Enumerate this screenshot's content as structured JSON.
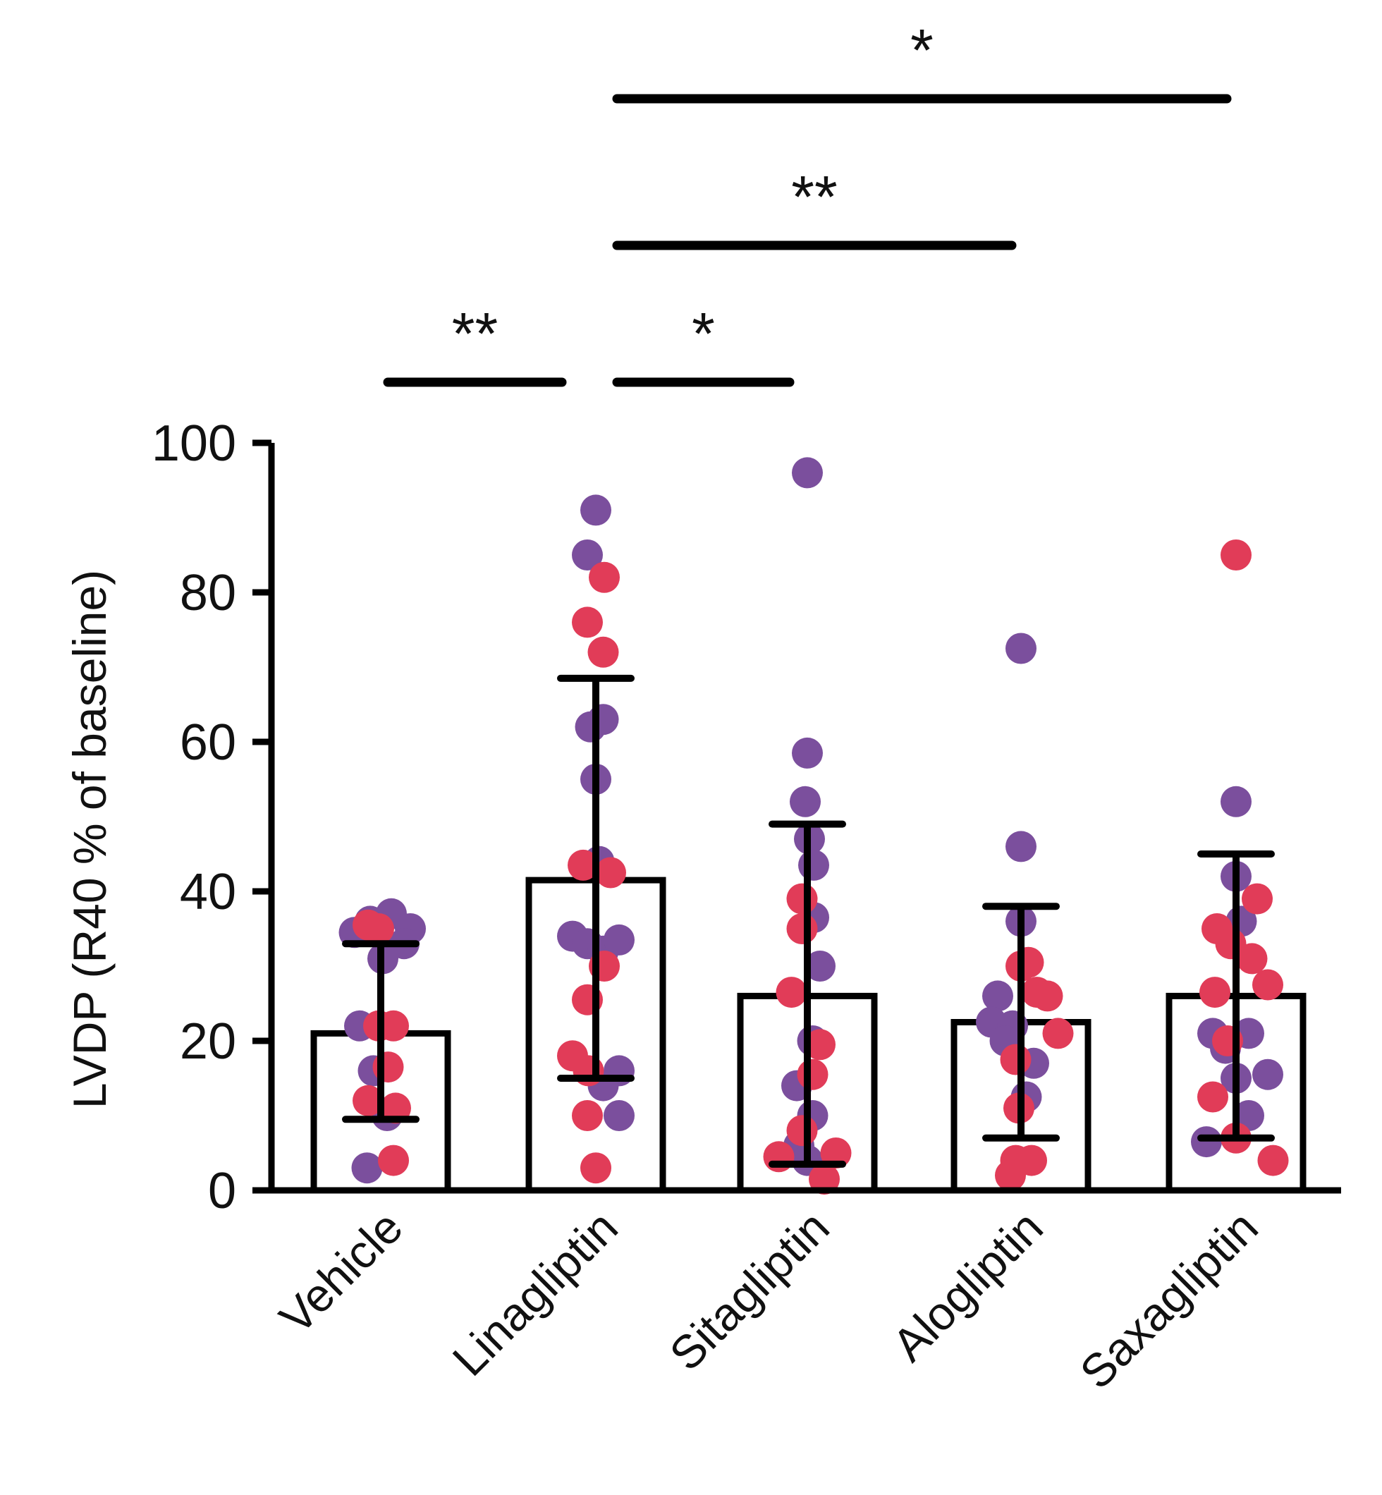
{
  "chart_data": {
    "type": "bar",
    "title": "",
    "xlabel": "",
    "ylabel": "LVDP (R40 % of baseline)",
    "ylim": [
      0,
      100
    ],
    "yticks": [
      {
        "value": 0,
        "label": "0"
      },
      {
        "value": 20,
        "label": "20"
      },
      {
        "value": 40,
        "label": "40"
      },
      {
        "value": 60,
        "label": "60"
      },
      {
        "value": 80,
        "label": "80"
      },
      {
        "value": 100,
        "label": "100"
      }
    ],
    "colors": {
      "purple": "#7b4f9d",
      "red": "#e13c58",
      "bar_fill": "#ffffff",
      "ink": "#000000"
    },
    "groups": [
      {
        "label": "Vehicle",
        "mean": 21,
        "err_low": 9.5,
        "err_high": 33,
        "points": [
          {
            "v": 34.5,
            "c": "purple",
            "dx": -0.25
          },
          {
            "v": 36,
            "c": "purple",
            "dx": -0.1
          },
          {
            "v": 37,
            "c": "purple",
            "dx": 0.1
          },
          {
            "v": 35,
            "c": "purple",
            "dx": 0.28
          },
          {
            "v": 33,
            "c": "purple",
            "dx": 0.22
          },
          {
            "v": 31,
            "c": "purple",
            "dx": 0.02
          },
          {
            "v": 22,
            "c": "purple",
            "dx": -0.2
          },
          {
            "v": 16,
            "c": "purple",
            "dx": -0.07
          },
          {
            "v": 10,
            "c": "purple",
            "dx": 0.06
          },
          {
            "v": 3,
            "c": "purple",
            "dx": -0.13
          },
          {
            "v": 35.5,
            "c": "red",
            "dx": -0.12
          },
          {
            "v": 35,
            "c": "red",
            "dx": -0.02
          },
          {
            "v": 22,
            "c": "red",
            "dx": -0.02
          },
          {
            "v": 22,
            "c": "red",
            "dx": 0.12
          },
          {
            "v": 16.5,
            "c": "red",
            "dx": 0.07
          },
          {
            "v": 12,
            "c": "red",
            "dx": -0.12
          },
          {
            "v": 11,
            "c": "red",
            "dx": 0.14
          },
          {
            "v": 4,
            "c": "red",
            "dx": 0.12
          }
        ]
      },
      {
        "label": "Linagliptin",
        "mean": 41.5,
        "err_low": 15,
        "err_high": 68.5,
        "points": [
          {
            "v": 91,
            "c": "purple",
            "dx": 0.0
          },
          {
            "v": 85,
            "c": "purple",
            "dx": -0.08
          },
          {
            "v": 63,
            "c": "purple",
            "dx": 0.07
          },
          {
            "v": 62,
            "c": "purple",
            "dx": -0.05
          },
          {
            "v": 55,
            "c": "purple",
            "dx": 0.0
          },
          {
            "v": 44,
            "c": "purple",
            "dx": 0.03
          },
          {
            "v": 34,
            "c": "purple",
            "dx": -0.22
          },
          {
            "v": 33,
            "c": "purple",
            "dx": -0.08
          },
          {
            "v": 32,
            "c": "purple",
            "dx": 0.07
          },
          {
            "v": 33.5,
            "c": "purple",
            "dx": 0.22
          },
          {
            "v": 16,
            "c": "purple",
            "dx": 0.22
          },
          {
            "v": 14,
            "c": "purple",
            "dx": 0.07
          },
          {
            "v": 10,
            "c": "purple",
            "dx": 0.22
          },
          {
            "v": 82,
            "c": "red",
            "dx": 0.08
          },
          {
            "v": 76,
            "c": "red",
            "dx": -0.08
          },
          {
            "v": 72,
            "c": "red",
            "dx": 0.07
          },
          {
            "v": 43.5,
            "c": "red",
            "dx": -0.12
          },
          {
            "v": 42.5,
            "c": "red",
            "dx": 0.14
          },
          {
            "v": 30,
            "c": "red",
            "dx": 0.08
          },
          {
            "v": 25.5,
            "c": "red",
            "dx": -0.08
          },
          {
            "v": 18,
            "c": "red",
            "dx": -0.22
          },
          {
            "v": 16,
            "c": "red",
            "dx": -0.07
          },
          {
            "v": 10,
            "c": "red",
            "dx": -0.08
          },
          {
            "v": 3,
            "c": "red",
            "dx": 0.0
          }
        ]
      },
      {
        "label": "Sitagliptin",
        "mean": 26,
        "err_low": 3.5,
        "err_high": 49,
        "points": [
          {
            "v": 96,
            "c": "purple",
            "dx": 0.0
          },
          {
            "v": 58.5,
            "c": "purple",
            "dx": 0.0
          },
          {
            "v": 52,
            "c": "purple",
            "dx": -0.02
          },
          {
            "v": 47,
            "c": "purple",
            "dx": 0.02
          },
          {
            "v": 43.5,
            "c": "purple",
            "dx": 0.06
          },
          {
            "v": 36.5,
            "c": "purple",
            "dx": 0.06
          },
          {
            "v": 30,
            "c": "purple",
            "dx": 0.12
          },
          {
            "v": 20,
            "c": "purple",
            "dx": 0.05
          },
          {
            "v": 14,
            "c": "purple",
            "dx": -0.1
          },
          {
            "v": 10,
            "c": "purple",
            "dx": 0.05
          },
          {
            "v": 6,
            "c": "purple",
            "dx": -0.08
          },
          {
            "v": 4,
            "c": "purple",
            "dx": 0.0
          },
          {
            "v": 39,
            "c": "red",
            "dx": -0.05
          },
          {
            "v": 35,
            "c": "red",
            "dx": -0.05
          },
          {
            "v": 26.5,
            "c": "red",
            "dx": -0.15
          },
          {
            "v": 19.5,
            "c": "red",
            "dx": 0.12
          },
          {
            "v": 15.5,
            "c": "red",
            "dx": 0.05
          },
          {
            "v": 8,
            "c": "red",
            "dx": -0.05
          },
          {
            "v": 4.5,
            "c": "red",
            "dx": -0.27
          },
          {
            "v": 5,
            "c": "red",
            "dx": 0.27
          },
          {
            "v": 1.5,
            "c": "red",
            "dx": 0.16
          }
        ]
      },
      {
        "label": "Alogliptin",
        "mean": 22.5,
        "err_low": 7,
        "err_high": 38,
        "points": [
          {
            "v": 72.5,
            "c": "purple",
            "dx": 0.0
          },
          {
            "v": 46,
            "c": "purple",
            "dx": 0.0
          },
          {
            "v": 36,
            "c": "purple",
            "dx": 0.0
          },
          {
            "v": 26,
            "c": "purple",
            "dx": -0.22
          },
          {
            "v": 22.5,
            "c": "purple",
            "dx": -0.28
          },
          {
            "v": 22,
            "c": "purple",
            "dx": -0.08
          },
          {
            "v": 20,
            "c": "purple",
            "dx": -0.15
          },
          {
            "v": 17,
            "c": "purple",
            "dx": 0.12
          },
          {
            "v": 12.5,
            "c": "purple",
            "dx": 0.05
          },
          {
            "v": 30,
            "c": "red",
            "dx": 0.0
          },
          {
            "v": 30.5,
            "c": "red",
            "dx": 0.07
          },
          {
            "v": 26.5,
            "c": "red",
            "dx": 0.15
          },
          {
            "v": 26,
            "c": "red",
            "dx": 0.25
          },
          {
            "v": 21,
            "c": "red",
            "dx": 0.35
          },
          {
            "v": 17.5,
            "c": "red",
            "dx": -0.05
          },
          {
            "v": 11,
            "c": "red",
            "dx": -0.02
          },
          {
            "v": 4,
            "c": "red",
            "dx": 0.1
          },
          {
            "v": 4,
            "c": "red",
            "dx": -0.05
          },
          {
            "v": 2,
            "c": "red",
            "dx": -0.1
          }
        ]
      },
      {
        "label": "Saxagliptin",
        "mean": 26,
        "err_low": 7,
        "err_high": 45,
        "points": [
          {
            "v": 52,
            "c": "purple",
            "dx": 0.0
          },
          {
            "v": 42,
            "c": "purple",
            "dx": 0.0
          },
          {
            "v": 36,
            "c": "purple",
            "dx": 0.05
          },
          {
            "v": 21,
            "c": "purple",
            "dx": -0.22
          },
          {
            "v": 19,
            "c": "purple",
            "dx": -0.1
          },
          {
            "v": 21,
            "c": "purple",
            "dx": 0.12
          },
          {
            "v": 15,
            "c": "purple",
            "dx": 0.0
          },
          {
            "v": 10,
            "c": "purple",
            "dx": 0.12
          },
          {
            "v": 15.5,
            "c": "purple",
            "dx": 0.3
          },
          {
            "v": 6.5,
            "c": "purple",
            "dx": -0.28
          },
          {
            "v": 85,
            "c": "red",
            "dx": 0.0
          },
          {
            "v": 39,
            "c": "red",
            "dx": 0.2
          },
          {
            "v": 35,
            "c": "red",
            "dx": -0.18
          },
          {
            "v": 33,
            "c": "red",
            "dx": -0.05
          },
          {
            "v": 31,
            "c": "red",
            "dx": 0.15
          },
          {
            "v": 27.5,
            "c": "red",
            "dx": 0.3
          },
          {
            "v": 26.5,
            "c": "red",
            "dx": -0.2
          },
          {
            "v": 20,
            "c": "red",
            "dx": -0.08
          },
          {
            "v": 12.5,
            "c": "red",
            "dx": -0.22
          },
          {
            "v": 7,
            "c": "red",
            "dx": 0.0
          },
          {
            "v": 4,
            "c": "red",
            "dx": 0.35
          }
        ]
      }
    ],
    "significance": [
      {
        "from": 0,
        "to": 1,
        "label": "**",
        "level": 0
      },
      {
        "from": 1,
        "to": 2,
        "label": "*",
        "level": 0
      },
      {
        "from": 1,
        "to": 3,
        "label": "**",
        "level": 1
      },
      {
        "from": 1,
        "to": 4,
        "label": "*",
        "level": 2
      }
    ]
  }
}
